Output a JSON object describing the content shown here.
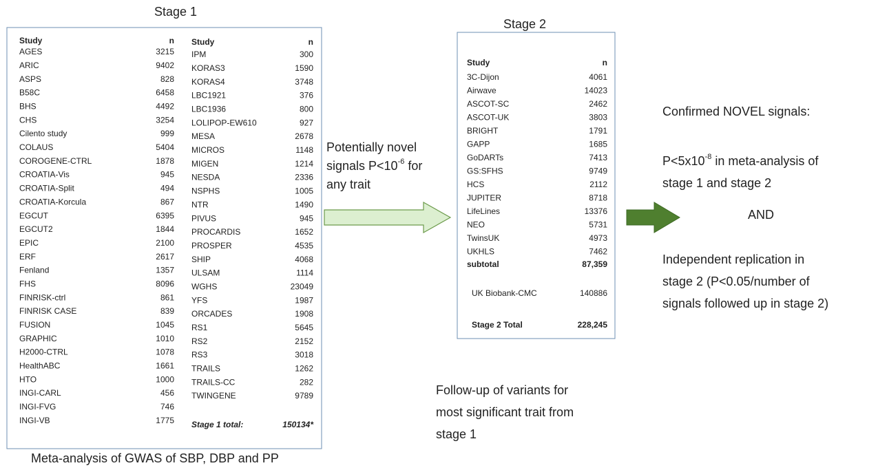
{
  "stage1": {
    "title": "Stage 1",
    "caption": "Meta-analysis of GWAS of SBP, DBP and PP",
    "columns": [
      {
        "header": [
          "Study",
          "n"
        ],
        "rows": [
          [
            "AGES",
            3215
          ],
          [
            "ARIC",
            9402
          ],
          [
            "ASPS",
            828
          ],
          [
            "B58C",
            6458
          ],
          [
            "BHS",
            4492
          ],
          [
            "CHS",
            3254
          ],
          [
            "Cilento study",
            999
          ],
          [
            "COLAUS",
            5404
          ],
          [
            "COROGENE-CTRL",
            1878
          ],
          [
            "CROATIA-Vis",
            945
          ],
          [
            "CROATIA-Split",
            494
          ],
          [
            "CROATIA-Korcula",
            867
          ],
          [
            "EGCUT",
            6395
          ],
          [
            "EGCUT2",
            1844
          ],
          [
            "EPIC",
            2100
          ],
          [
            "ERF",
            2617
          ],
          [
            "Fenland",
            1357
          ],
          [
            "FHS",
            8096
          ],
          [
            "FINRISK-ctrl",
            861
          ],
          [
            "FINRISK CASE",
            839
          ],
          [
            "FUSION",
            1045
          ],
          [
            "GRAPHIC",
            1010
          ],
          [
            "H2000-CTRL",
            1078
          ],
          [
            "HealthABC",
            1661
          ],
          [
            "HTO",
            1000
          ],
          [
            "INGI-CARL",
            456
          ],
          [
            "INGI-FVG",
            746
          ],
          [
            "INGI-VB",
            1775
          ]
        ]
      },
      {
        "header": [
          "Study",
          "n"
        ],
        "rows": [
          [
            "IPM",
            300
          ],
          [
            "KORAS3",
            1590
          ],
          [
            "KORAS4",
            3748
          ],
          [
            "LBC1921",
            376
          ],
          [
            "LBC1936",
            800
          ],
          [
            "LOLIPOP-EW610",
            927
          ],
          [
            "MESA",
            2678
          ],
          [
            "MICROS",
            1148
          ],
          [
            "MIGEN",
            1214
          ],
          [
            "NESDA",
            2336
          ],
          [
            "NSPHS",
            1005
          ],
          [
            "NTR",
            1490
          ],
          [
            "PIVUS",
            945
          ],
          [
            "PROCARDIS",
            1652
          ],
          [
            "PROSPER",
            4535
          ],
          [
            "SHIP",
            4068
          ],
          [
            "ULSAM",
            1114
          ],
          [
            "WGHS",
            23049
          ],
          [
            "YFS",
            1987
          ],
          [
            "ORCADES",
            1908
          ],
          [
            "RS1",
            5645
          ],
          [
            "RS2",
            2152
          ],
          [
            "RS3",
            3018
          ],
          [
            "TRAILS",
            1262
          ],
          [
            "TRAILS-CC",
            282
          ],
          [
            "TWINGENE",
            9789
          ]
        ]
      }
    ],
    "total": [
      "Stage 1 total:",
      "150134*"
    ]
  },
  "arrow1": {
    "lines": [
      {
        "text": "Potentially novel"
      },
      {
        "text": "signals P<10",
        "sup": "-6",
        "after": " for"
      },
      {
        "text": "any trait"
      }
    ]
  },
  "stage2": {
    "title": "Stage 2",
    "header": [
      "Study",
      "n"
    ],
    "rows": [
      [
        "3C-Dijon",
        4061
      ],
      [
        "Airwave",
        14023
      ],
      [
        "ASCOT-SC",
        2462
      ],
      [
        "ASCOT-UK",
        3803
      ],
      [
        "BRIGHT",
        1791
      ],
      [
        "GAPP",
        1685
      ],
      [
        "GoDARTs",
        7413
      ],
      [
        "GS:SFHS",
        9749
      ],
      [
        "HCS",
        2112
      ],
      [
        "JUPITER",
        8718
      ],
      [
        "LifeLines",
        13376
      ],
      [
        "NEO",
        5731
      ],
      [
        "TwinsUK",
        4973
      ],
      [
        "UKHLS",
        7462
      ]
    ],
    "subtotal": [
      "subtotal",
      "87,359"
    ],
    "biobank": [
      "UK Biobank-CMC",
      140886
    ],
    "total": [
      "Stage 2 Total",
      "228,245"
    ],
    "caption": [
      "Follow-up of variants for",
      "most significant trait from",
      "stage 1"
    ]
  },
  "result": {
    "heading": "Confirmed NOVEL signals:",
    "criterion1": [
      {
        "text": "P<5x10",
        "sup": "-8",
        "after": " in meta-analysis of"
      },
      {
        "text": "stage 1 and stage 2"
      }
    ],
    "joiner": "AND",
    "criterion2": [
      "Independent replication in",
      "stage 2 (P<0.05/number of",
      "signals followed up in stage 2)"
    ]
  }
}
